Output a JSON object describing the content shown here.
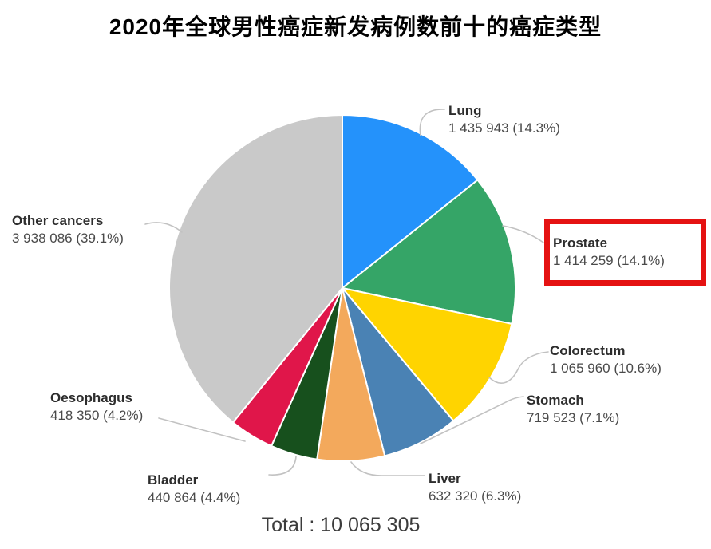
{
  "title": "2020年全球男性癌症新发病例数前十的癌症类型",
  "chart_data": {
    "type": "pie",
    "title": "2020年全球男性癌症新发病例数前十的癌症类型",
    "total_value": 10065305,
    "total_label": "Total : 10 065 305",
    "start_angle_deg": -90,
    "direction": "clockwise",
    "legend_position": "none",
    "labels": "outside-with-leader-lines",
    "slices": [
      {
        "name": "Lung",
        "value": 1435943,
        "pct": 14.3,
        "display": "1 435 943 (14.3%)",
        "color": "#2492fb"
      },
      {
        "name": "Prostate",
        "value": 1414259,
        "pct": 14.1,
        "display": "1 414 259 (14.1%)",
        "color": "#35a567",
        "highlighted": true
      },
      {
        "name": "Colorectum",
        "value": 1065960,
        "pct": 10.6,
        "display": "1 065 960 (10.6%)",
        "color": "#ffd400"
      },
      {
        "name": "Stomach",
        "value": 719523,
        "pct": 7.1,
        "display": "719 523 (7.1%)",
        "color": "#4a82b4"
      },
      {
        "name": "Liver",
        "value": 632320,
        "pct": 6.3,
        "display": "632 320 (6.3%)",
        "color": "#f3a95c"
      },
      {
        "name": "Bladder",
        "value": 440864,
        "pct": 4.4,
        "display": "440 864 (4.4%)",
        "color": "#17501d"
      },
      {
        "name": "Oesophagus",
        "value": 418350,
        "pct": 4.2,
        "display": "418 350 (4.2%)",
        "color": "#e0164a"
      },
      {
        "name": "Other cancers",
        "value": 3938086,
        "pct": 39.1,
        "display": "3 938 086 (39.1%)",
        "color": "#c9c9c9"
      }
    ]
  },
  "highlight": {
    "type": "red-rectangle",
    "target": "Prostate",
    "color": "#e51212"
  }
}
